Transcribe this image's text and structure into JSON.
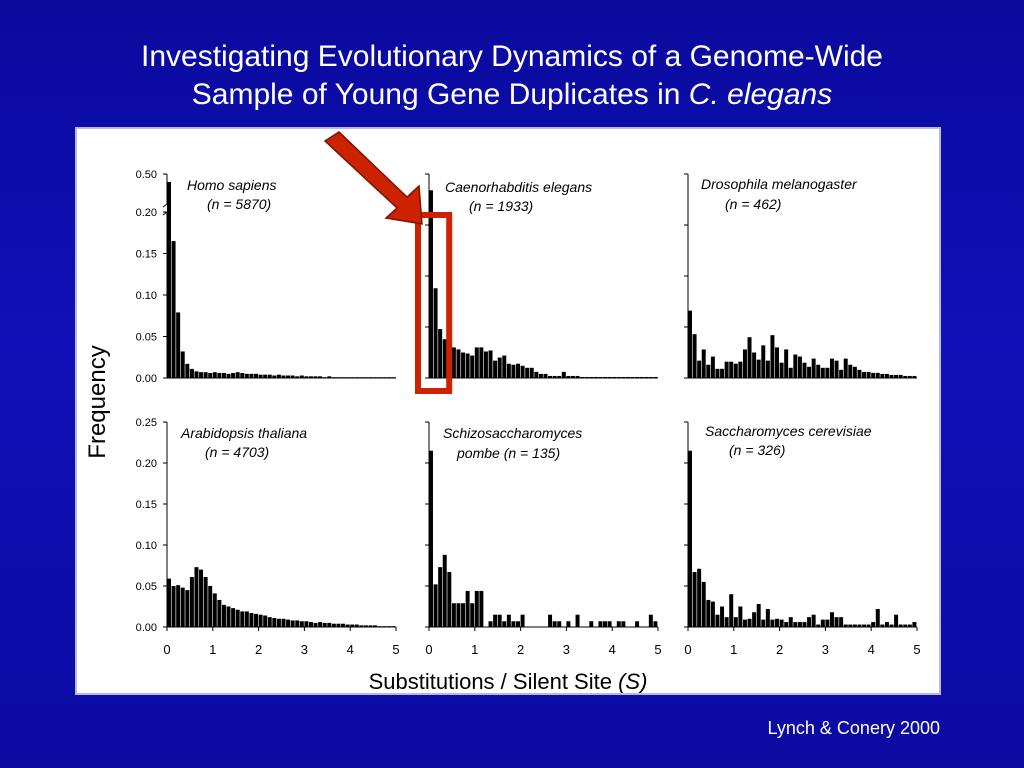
{
  "slide": {
    "title_line1": "Investigating Evolutionary Dynamics of a Genome-Wide",
    "title_line2_prefix": "Sample of Young Gene Duplicates in ",
    "title_line2_italic": "C. elegans",
    "credit": "Lynch & Conery 2000"
  },
  "colors": {
    "background": "#1010b8",
    "highlight": "#cc2200",
    "bars": "#000000"
  },
  "chart_data": {
    "type": "bar",
    "ylabel": "Frequency",
    "xlabel_prefix": "Substitutions / Silent Site ",
    "xlabel_italic": "(S)",
    "x_ticks": [
      "0",
      "1",
      "2",
      "3",
      "4",
      "5"
    ],
    "xlim": [
      0,
      5
    ],
    "bin_width": 0.1,
    "panels": [
      {
        "species": "Homo sapiens",
        "n": "(n = 5870)",
        "ylim": [
          0,
          0.2
        ],
        "y_ticks": [
          "0.50",
          "0.20",
          "0.15",
          "0.10",
          "0.05",
          "0.00"
        ],
        "axis_break": true,
        "values": [
          0.5,
          0.165,
          0.079,
          0.032,
          0.017,
          0.011,
          0.008,
          0.007,
          0.007,
          0.006,
          0.007,
          0.006,
          0.006,
          0.005,
          0.006,
          0.007,
          0.006,
          0.005,
          0.005,
          0.005,
          0.004,
          0.004,
          0.004,
          0.003,
          0.004,
          0.003,
          0.003,
          0.003,
          0.002,
          0.003,
          0.002,
          0.002,
          0.002,
          0.002,
          0.001,
          0.002,
          0.001,
          0.001,
          0.001,
          0.001,
          0.001,
          0.001,
          0.001,
          0.001,
          0.001,
          0.001,
          0.001,
          0.001,
          0.001,
          0.001
        ]
      },
      {
        "species": "Caenorhabditis elegans",
        "n": "(n = 1933)",
        "ylim": [
          0,
          0.2
        ],
        "y_ticks": [],
        "highlight": [
          0,
          2
        ],
        "values": [
          0.184,
          0.088,
          0.048,
          0.038,
          0.033,
          0.03,
          0.028,
          0.025,
          0.024,
          0.022,
          0.03,
          0.03,
          0.026,
          0.027,
          0.017,
          0.02,
          0.022,
          0.014,
          0.013,
          0.014,
          0.012,
          0.01,
          0.01,
          0.006,
          0.004,
          0.004,
          0.002,
          0.002,
          0.002,
          0.006,
          0.002,
          0.002,
          0.002,
          0.001,
          0.001,
          0.001,
          0.001,
          0.001,
          0.001,
          0.001,
          0.001,
          0.001,
          0.001,
          0.001,
          0.001,
          0.001,
          0.001,
          0.001,
          0.001,
          0.001
        ]
      },
      {
        "species": "Drosophila melanogaster",
        "n": "(n = 462)",
        "ylim": [
          0,
          0.2
        ],
        "y_ticks": [],
        "values": [
          0.066,
          0.043,
          0.017,
          0.028,
          0.013,
          0.021,
          0.009,
          0.009,
          0.016,
          0.016,
          0.014,
          0.016,
          0.028,
          0.04,
          0.025,
          0.018,
          0.032,
          0.017,
          0.042,
          0.03,
          0.015,
          0.028,
          0.01,
          0.023,
          0.021,
          0.015,
          0.011,
          0.019,
          0.013,
          0.01,
          0.01,
          0.019,
          0.017,
          0.008,
          0.019,
          0.013,
          0.011,
          0.008,
          0.006,
          0.006,
          0.005,
          0.005,
          0.004,
          0.004,
          0.003,
          0.003,
          0.003,
          0.002,
          0.002,
          0.002
        ]
      },
      {
        "species": "Arabidopsis thaliana",
        "n": "(n = 4703)",
        "ylim": [
          0,
          0.25
        ],
        "y_ticks": [
          "0.25",
          "0.20",
          "0.15",
          "0.10",
          "0.05",
          "0.00"
        ],
        "values": [
          0.059,
          0.05,
          0.051,
          0.048,
          0.045,
          0.061,
          0.073,
          0.07,
          0.061,
          0.05,
          0.041,
          0.033,
          0.027,
          0.025,
          0.023,
          0.021,
          0.019,
          0.019,
          0.017,
          0.016,
          0.015,
          0.014,
          0.012,
          0.011,
          0.01,
          0.01,
          0.009,
          0.008,
          0.008,
          0.007,
          0.007,
          0.006,
          0.005,
          0.006,
          0.005,
          0.005,
          0.004,
          0.004,
          0.004,
          0.003,
          0.003,
          0.003,
          0.002,
          0.002,
          0.002,
          0.002,
          0.001,
          0.001,
          0.001,
          0.001
        ]
      },
      {
        "species": "Schizosaccharomyces",
        "n": "pombe (n = 135)",
        "ylim": [
          0,
          0.25
        ],
        "y_ticks": [],
        "values": [
          0.215,
          0.052,
          0.073,
          0.088,
          0.067,
          0.029,
          0.029,
          0.029,
          0.044,
          0.029,
          0.044,
          0.044,
          0.0,
          0.007,
          0.015,
          0.015,
          0.007,
          0.015,
          0.007,
          0.007,
          0.015,
          0.0,
          0.0,
          0.0,
          0.0,
          0.0,
          0.015,
          0.007,
          0.007,
          0.0,
          0.007,
          0.0,
          0.015,
          0.0,
          0.0,
          0.007,
          0.0,
          0.007,
          0.007,
          0.007,
          0.0,
          0.007,
          0.007,
          0.0,
          0.0,
          0.007,
          0.0,
          0.0,
          0.015,
          0.007
        ]
      },
      {
        "species": "Saccharomyces cerevisiae",
        "n": "(n = 326)",
        "ylim": [
          0,
          0.25
        ],
        "y_ticks": [],
        "values": [
          0.215,
          0.067,
          0.071,
          0.055,
          0.033,
          0.031,
          0.015,
          0.025,
          0.012,
          0.04,
          0.012,
          0.025,
          0.009,
          0.01,
          0.018,
          0.028,
          0.009,
          0.022,
          0.009,
          0.01,
          0.009,
          0.006,
          0.012,
          0.006,
          0.006,
          0.006,
          0.012,
          0.015,
          0.003,
          0.009,
          0.009,
          0.018,
          0.012,
          0.012,
          0.003,
          0.003,
          0.003,
          0.003,
          0.003,
          0.003,
          0.006,
          0.022,
          0.003,
          0.006,
          0.003,
          0.015,
          0.003,
          0.003,
          0.003,
          0.006
        ]
      }
    ]
  }
}
